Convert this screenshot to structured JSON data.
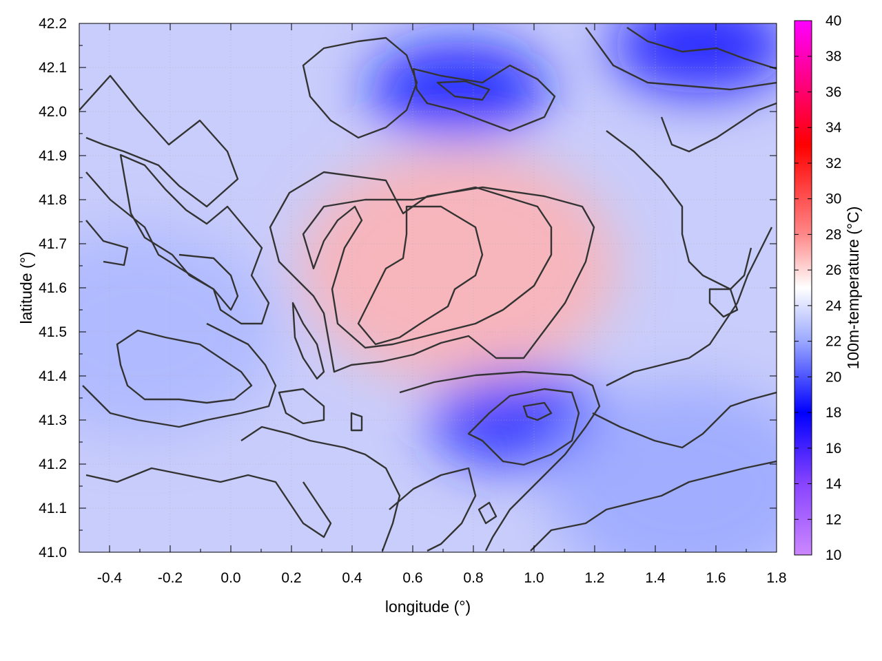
{
  "chart_data": {
    "type": "heatmap",
    "title": "",
    "xlabel": "longitude (°)",
    "ylabel": "latitude (°)",
    "colorbar_label": "100m-temperature (°C)",
    "xlim": [
      -0.5,
      1.8
    ],
    "ylim": [
      41.0,
      42.2
    ],
    "x_ticks": [
      "-0.4",
      "-0.2",
      "0.0",
      "0.2",
      "0.4",
      "0.6",
      "0.8",
      "1.0",
      "1.2",
      "1.4",
      "1.6",
      "1.8"
    ],
    "y_ticks": [
      "41.0",
      "41.1",
      "41.2",
      "41.3",
      "41.4",
      "41.5",
      "41.6",
      "41.7",
      "41.8",
      "41.9",
      "42.0",
      "42.1",
      "42.2"
    ],
    "colorbar_range": [
      10,
      40
    ],
    "colorbar_ticks": [
      "10",
      "12",
      "14",
      "16",
      "18",
      "20",
      "22",
      "24",
      "26",
      "28",
      "30",
      "32",
      "34",
      "36",
      "38",
      "40"
    ],
    "colormap": [
      {
        "value": 10,
        "color": "#cc88ff"
      },
      {
        "value": 14,
        "color": "#8844ff"
      },
      {
        "value": 18,
        "color": "#0000ff"
      },
      {
        "value": 22,
        "color": "#9aa8ff"
      },
      {
        "value": 25,
        "color": "#ffffff"
      },
      {
        "value": 28,
        "color": "#ff8888"
      },
      {
        "value": 33,
        "color": "#ff0000"
      },
      {
        "value": 40,
        "color": "#ff00ff"
      }
    ],
    "grid": true,
    "contours": true,
    "field_description_regions": [
      {
        "name": "warm-core",
        "lon": 0.75,
        "lat": 41.65,
        "value": 27.0
      },
      {
        "name": "cold-northeast",
        "lon": 1.55,
        "lat": 42.15,
        "value": 17.5
      },
      {
        "name": "cold-north",
        "lon": 0.75,
        "lat": 42.05,
        "value": 18.5
      },
      {
        "name": "cold-southeast-pocket",
        "lon": 0.95,
        "lat": 41.3,
        "value": 19.0
      },
      {
        "name": "cool-west",
        "lon": -0.3,
        "lat": 41.5,
        "value": 22.5
      },
      {
        "name": "cool-southeast",
        "lon": 1.5,
        "lat": 41.15,
        "value": 22.0
      }
    ]
  }
}
